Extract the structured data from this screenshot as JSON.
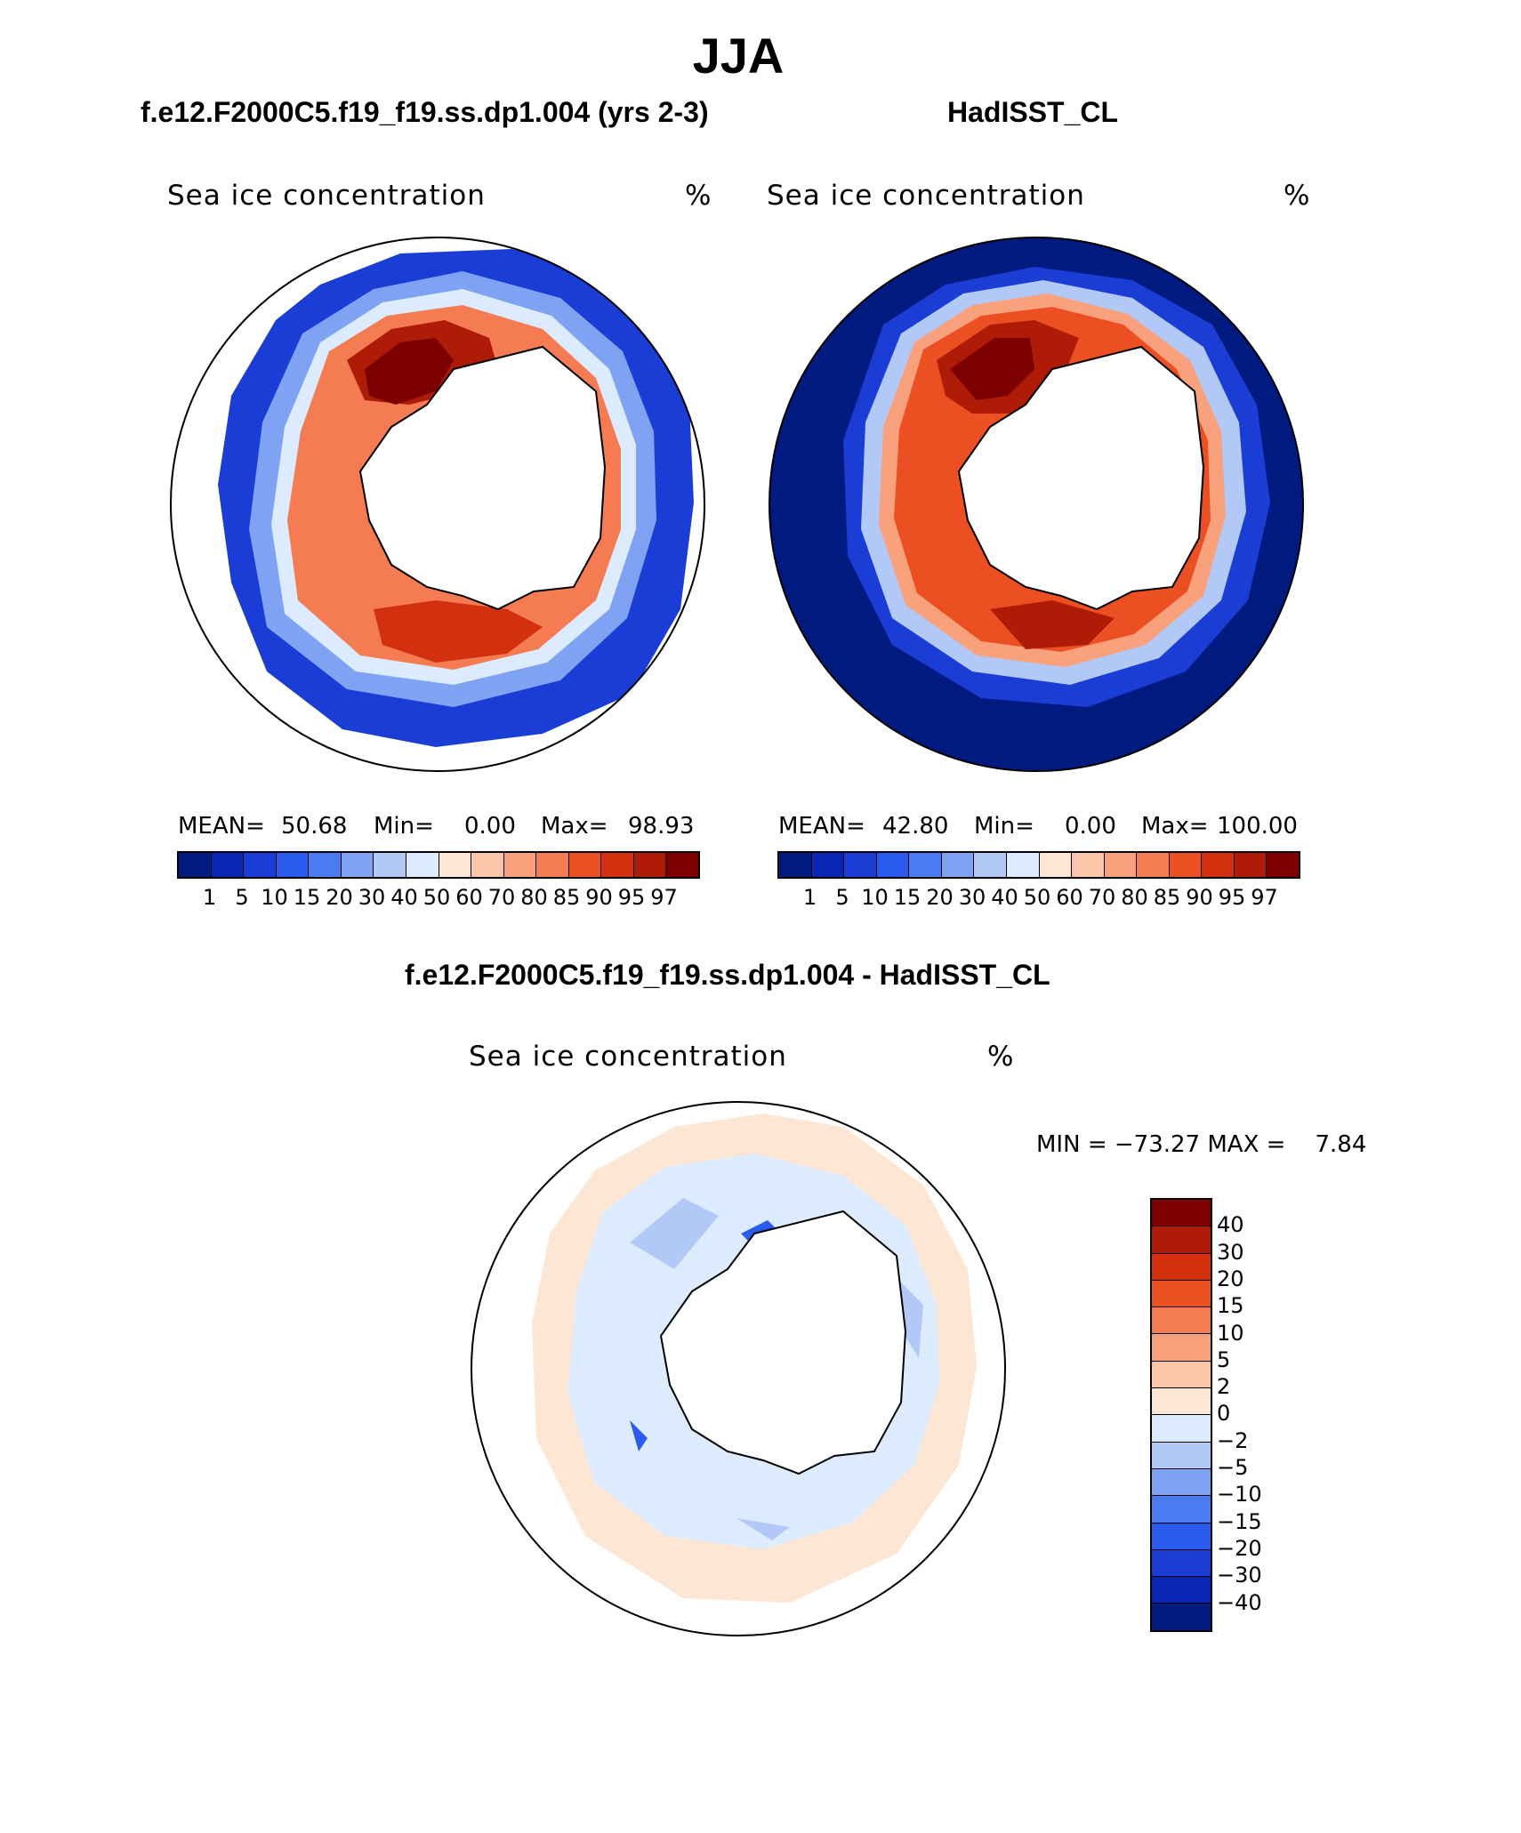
{
  "season": "JJA",
  "panels": [
    {
      "title": "f.e12.F2000C5.f19_f19.ss.dp1.004 (yrs 2-3)",
      "variable": "Sea ice concentration",
      "unit": "%",
      "stats": {
        "mean_label": "MEAN=",
        "mean": "50.68",
        "min_label": "Min=",
        "min": "0.00",
        "max_label": "Max=",
        "max": "98.93"
      }
    },
    {
      "title": "HadISST_CL",
      "variable": "Sea ice concentration",
      "unit": "%",
      "stats": {
        "mean_label": "MEAN=",
        "mean": "42.80",
        "min_label": "Min=",
        "min": "0.00",
        "max_label": "Max=",
        "max": "100.00"
      }
    }
  ],
  "diff_panel": {
    "title": "f.e12.F2000C5.f19_f19.ss.dp1.004 - HadISST_CL",
    "variable": "Sea ice concentration",
    "unit": "%",
    "minmax": "MIN = −73.27 MAX =    7.84"
  },
  "colorbar_abs": {
    "labels": [
      "1",
      "5",
      "10",
      "15",
      "20",
      "30",
      "40",
      "50",
      "60",
      "70",
      "80",
      "85",
      "90",
      "95",
      "97"
    ],
    "colors": [
      "#001a80",
      "#0a24b4",
      "#1a3dd6",
      "#2a5aee",
      "#4a7bf0",
      "#7fa3f2",
      "#b2c9f7",
      "#dcebfd",
      "#fde6d4",
      "#fcc4a8",
      "#f9a07c",
      "#f47b52",
      "#ec4f22",
      "#d2300e",
      "#ae1c08",
      "#7d0000"
    ]
  },
  "colorbar_diff": {
    "labels": [
      "40",
      "30",
      "20",
      "15",
      "10",
      "5",
      "2",
      "0",
      "−2",
      "−5",
      "−10",
      "−15",
      "−20",
      "−30",
      "−40"
    ],
    "colors": [
      "#7d0000",
      "#ae1c08",
      "#d2300e",
      "#ec4f22",
      "#f47b52",
      "#f9a07c",
      "#fcc4a8",
      "#fde6d4",
      "#dcebfd",
      "#b2c9f7",
      "#7fa3f2",
      "#4a7bf0",
      "#2a5aee",
      "#1a3dd6",
      "#0a24b4",
      "#001a80"
    ]
  }
}
